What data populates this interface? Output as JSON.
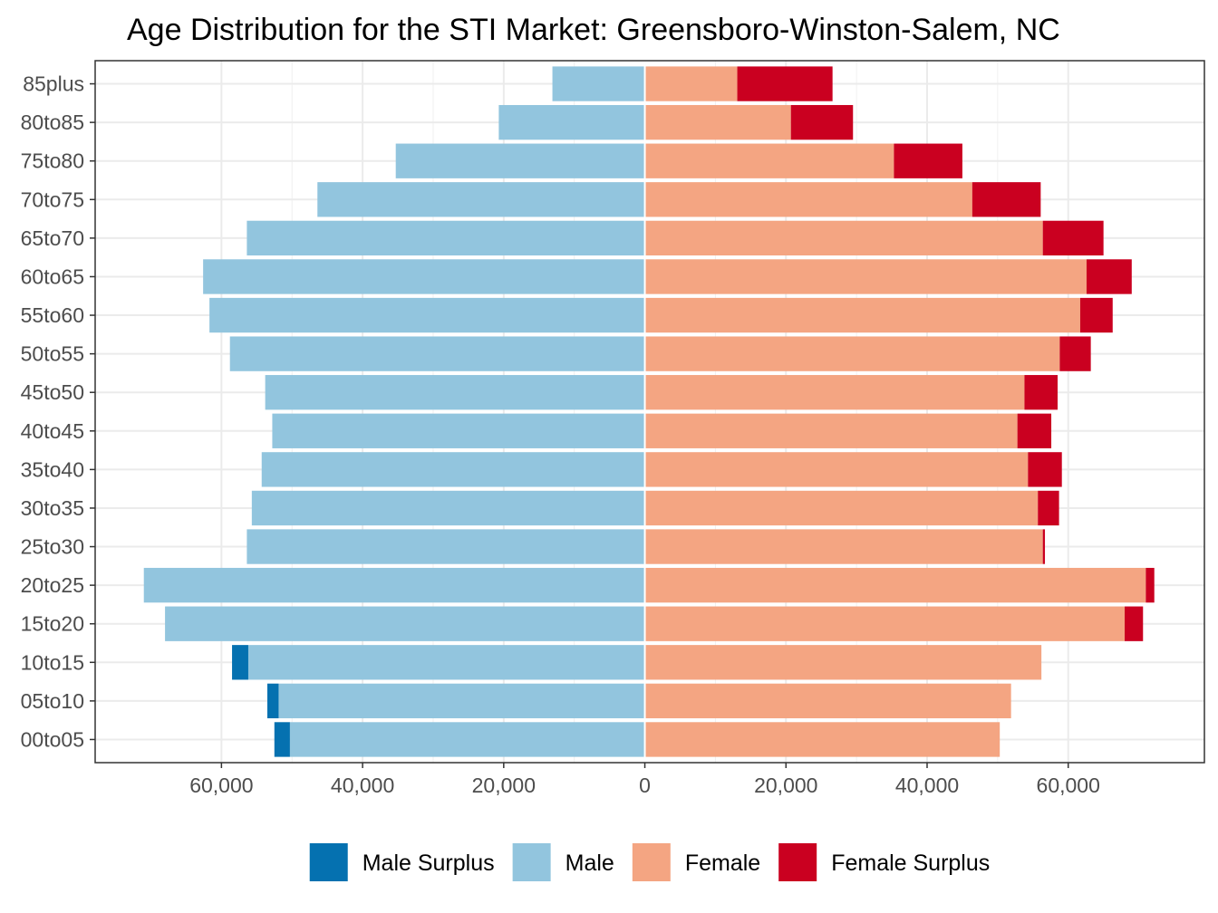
{
  "chart_data": {
    "type": "bar",
    "orientation": "horizontal-diverging",
    "title": "Age Distribution for the STI Market: Greensboro-Winston-Salem, NC",
    "xlabel": "",
    "ylabel": "",
    "categories": [
      "00to05",
      "05to10",
      "10to15",
      "15to20",
      "20to25",
      "25to30",
      "30to35",
      "35to40",
      "40to45",
      "45to50",
      "50to55",
      "55to60",
      "60to65",
      "65to70",
      "70to75",
      "75to80",
      "80to85",
      "85plus"
    ],
    "series": [
      {
        "name": "Male Surplus",
        "side": "left",
        "color": "#0571b0",
        "values": [
          2200,
          1600,
          2300,
          0,
          0,
          0,
          0,
          0,
          0,
          0,
          0,
          0,
          0,
          0,
          0,
          0,
          0,
          0
        ]
      },
      {
        "name": "Male",
        "side": "left",
        "color": "#92c5de",
        "values": [
          50300,
          51900,
          56200,
          68000,
          71000,
          56400,
          55700,
          54300,
          52800,
          53800,
          58800,
          61700,
          62600,
          56400,
          46400,
          35300,
          20700,
          13100
        ]
      },
      {
        "name": "Female",
        "side": "right",
        "color": "#f4a582",
        "values": [
          50300,
          51900,
          56200,
          68000,
          71000,
          56400,
          55700,
          54300,
          52800,
          53800,
          58800,
          61700,
          62600,
          56400,
          46400,
          35300,
          20700,
          13100
        ]
      },
      {
        "name": "Female Surplus",
        "side": "right",
        "color": "#ca0020",
        "values": [
          0,
          0,
          0,
          2600,
          1200,
          300,
          3000,
          4800,
          4800,
          4700,
          4400,
          4600,
          6400,
          8600,
          9700,
          9700,
          8800,
          13500
        ]
      }
    ],
    "xlim": [
      -77900,
      79300
    ],
    "xticks": [
      -60000,
      -40000,
      -20000,
      0,
      20000,
      40000,
      60000
    ],
    "xtick_labels": [
      "60,000",
      "40,000",
      "20,000",
      "0",
      "20,000",
      "40,000",
      "60,000"
    ],
    "grid": true,
    "legend_position": "bottom"
  }
}
